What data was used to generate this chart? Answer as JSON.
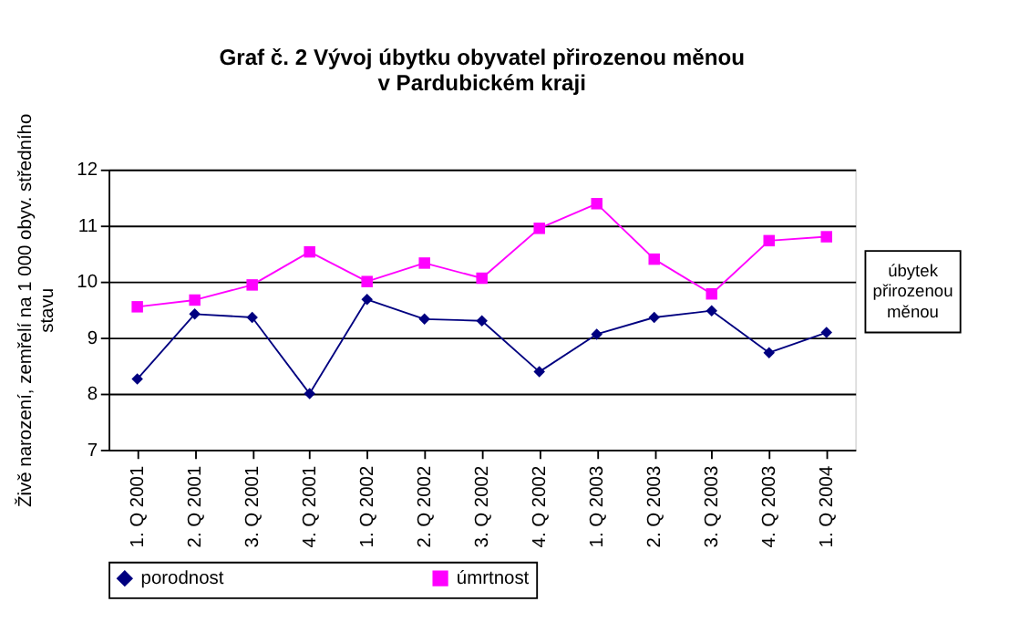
{
  "chart_data": {
    "type": "line",
    "title": [
      "Graf č. 2  Vývoj úbytku obyvatel přirozenou měnou",
      "v Pardubickém kraji"
    ],
    "ylabel": "Živě narození, zemřelí na 1 000 obyv. středního stavu",
    "categories": [
      "1. Q 2001",
      "2. Q 2001",
      "3. Q 2001",
      "4. Q 2001",
      "1. Q 2002",
      "2. Q 2002",
      "3. Q 2002",
      "4. Q 2002",
      "1. Q 2003",
      "2. Q 2003",
      "3. Q 2003",
      "4. Q 2003",
      "1. Q 2004"
    ],
    "series": [
      {
        "name": "porodnost",
        "color": "#000080",
        "marker": "diamond",
        "values": [
          8.26,
          9.42,
          9.36,
          8.0,
          9.68,
          9.33,
          9.3,
          8.39,
          9.06,
          9.36,
          9.48,
          8.73,
          9.09
        ]
      },
      {
        "name": "úmrtnost",
        "color": "#ff00ff",
        "marker": "square",
        "values": [
          9.55,
          9.67,
          9.94,
          10.53,
          10.0,
          10.33,
          10.06,
          10.95,
          11.39,
          10.4,
          9.78,
          10.73,
          10.8
        ]
      }
    ],
    "ylim": [
      7,
      12
    ],
    "yticks": [
      7,
      8,
      9,
      10,
      11,
      12
    ],
    "grid": "y",
    "legend": "bottom",
    "line_style": "solid",
    "annotations": [
      "úbytek přirozenou měnou"
    ]
  }
}
